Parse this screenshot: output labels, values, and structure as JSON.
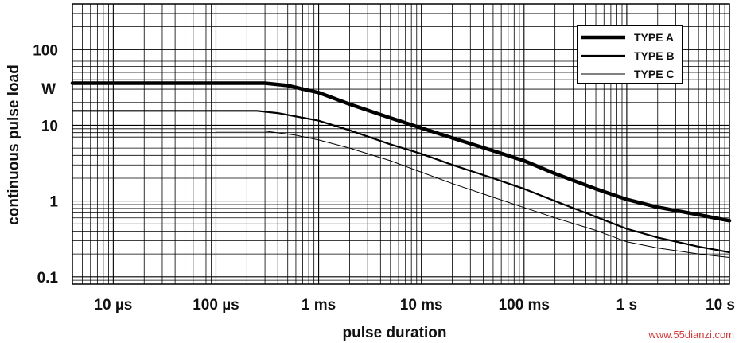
{
  "chart_data": {
    "type": "line",
    "title": "",
    "xlabel": "pulse duration",
    "ylabel": "continuous pulse load",
    "y_unit_label": "W",
    "x_scale": "log",
    "y_scale": "log",
    "xlim_seconds": [
      4e-06,
      10
    ],
    "ylim_watts": [
      0.08,
      400
    ],
    "grid": true,
    "legend_placement": "top-right",
    "x_ticks": [
      {
        "value": 1e-05,
        "label": "10 µs"
      },
      {
        "value": 0.0001,
        "label": "100 µs"
      },
      {
        "value": 0.001,
        "label": "1 ms"
      },
      {
        "value": 0.01,
        "label": "10 ms"
      },
      {
        "value": 0.1,
        "label": "100 ms"
      },
      {
        "value": 1,
        "label": "1 s"
      },
      {
        "value": 10,
        "label": "10 s"
      }
    ],
    "y_ticks": [
      {
        "value": 100,
        "label": "100"
      },
      {
        "value": 10,
        "label": "10"
      },
      {
        "value": 1,
        "label": "1"
      },
      {
        "value": 0.1,
        "label": "0.1"
      }
    ],
    "series": [
      {
        "name": "TYPE A",
        "color": "#000000",
        "weight": "thick",
        "x": [
          4e-06,
          0.0003,
          0.0005,
          0.001,
          0.002,
          0.005,
          0.01,
          0.02,
          0.05,
          0.1,
          0.2,
          0.5,
          1,
          2,
          5,
          10
        ],
        "y": [
          36,
          36,
          33.5,
          27,
          19,
          12.5,
          9.2,
          6.8,
          4.6,
          3.4,
          2.3,
          1.45,
          1.05,
          0.83,
          0.66,
          0.55
        ]
      },
      {
        "name": "TYPE B",
        "color": "#000000",
        "weight": "medium",
        "x": [
          4e-06,
          0.00025,
          0.0004,
          0.001,
          0.002,
          0.005,
          0.01,
          0.02,
          0.05,
          0.1,
          0.2,
          0.5,
          1,
          2,
          5,
          10
        ],
        "y": [
          15.5,
          15.5,
          14.5,
          11.5,
          8.6,
          5.6,
          4.2,
          3.0,
          2.0,
          1.45,
          1.0,
          0.62,
          0.43,
          0.33,
          0.25,
          0.21
        ]
      },
      {
        "name": "TYPE C",
        "color": "#000000",
        "weight": "thin",
        "x": [
          0.0001,
          0.0003,
          0.0006,
          0.001,
          0.002,
          0.005,
          0.01,
          0.02,
          0.05,
          0.1,
          0.2,
          0.5,
          1,
          2,
          5,
          10
        ],
        "y": [
          8.4,
          8.4,
          7.4,
          6.4,
          5.0,
          3.4,
          2.4,
          1.7,
          1.12,
          0.82,
          0.6,
          0.41,
          0.29,
          0.24,
          0.2,
          0.18
        ]
      }
    ]
  },
  "watermark": "www.55dianzi.com"
}
